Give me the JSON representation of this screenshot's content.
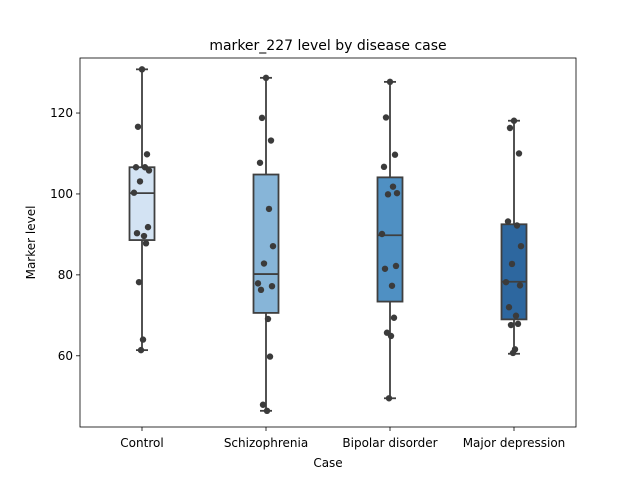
{
  "chart_data": {
    "type": "box",
    "title": "marker_227 level by disease case",
    "xlabel": "Case",
    "ylabel": "Marker level",
    "ylim": [
      42.4,
      133.6
    ],
    "yticks": [
      60,
      80,
      100,
      120
    ],
    "grid": false,
    "legend": "none",
    "categories": [
      "Control",
      "Schizophrenia",
      "Bipolar disorder",
      "Major depression"
    ],
    "colors": [
      "#d3e3f3",
      "#87b5d8",
      "#4f90c3",
      "#2d679f"
    ],
    "boxes": [
      {
        "category": "Control",
        "min": 61.4,
        "q1": 88.6,
        "median": 100.2,
        "q3": 106.6,
        "max": 130.8
      },
      {
        "category": "Schizophrenia",
        "min": 46.4,
        "q1": 70.6,
        "median": 80.2,
        "q3": 104.8,
        "max": 128.7
      },
      {
        "category": "Bipolar disorder",
        "min": 49.5,
        "q1": 73.4,
        "median": 89.8,
        "q3": 104.1,
        "max": 127.7
      },
      {
        "category": "Major depression",
        "min": 60.5,
        "q1": 69.0,
        "median": 78.3,
        "q3": 92.5,
        "max": 118.1
      }
    ],
    "points": [
      [
        130.8,
        116.6,
        109.8,
        106.6,
        106.6,
        105.8,
        103.1,
        100.3,
        91.8,
        90.3,
        89.6,
        87.8,
        78.2,
        64.0,
        61.4
      ],
      [
        128.7,
        118.8,
        113.2,
        107.7,
        96.3,
        87.1,
        82.8,
        77.9,
        77.2,
        76.3,
        69.1,
        59.8,
        47.9,
        46.4
      ],
      [
        127.7,
        118.9,
        109.7,
        106.7,
        101.8,
        100.2,
        99.9,
        90.1,
        82.2,
        81.5,
        77.3,
        69.4,
        65.7,
        64.9,
        49.5
      ],
      [
        118.1,
        116.3,
        110.0,
        93.2,
        92.2,
        87.1,
        82.7,
        78.2,
        77.4,
        72.0,
        69.9,
        67.9,
        67.6,
        61.6,
        60.7
      ]
    ]
  }
}
